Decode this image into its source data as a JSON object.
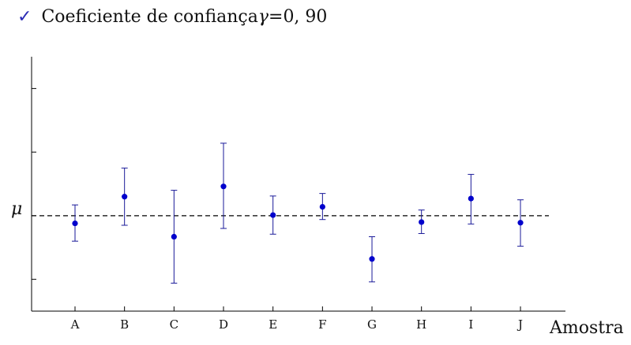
{
  "heading": {
    "check_symbol": "✓",
    "text": "Coeficiente de confiança ",
    "gamma_symbol": "γ",
    "equals": " = ",
    "value": "0, 90"
  },
  "chart_data": {
    "type": "scatter",
    "xlabel": "Amostra",
    "reference_line_label": "μ",
    "reference_value": 0,
    "ylim": [
      -1.5,
      2.5
    ],
    "grid": false,
    "categories": [
      "A",
      "B",
      "C",
      "D",
      "E",
      "F",
      "G",
      "H",
      "I",
      "J"
    ],
    "points": [
      {
        "x": "A",
        "y": -0.12,
        "lower": -0.4,
        "upper": 0.17
      },
      {
        "x": "B",
        "y": 0.3,
        "lower": -0.15,
        "upper": 0.75
      },
      {
        "x": "C",
        "y": -0.33,
        "lower": -1.06,
        "upper": 0.4
      },
      {
        "x": "D",
        "y": 0.46,
        "lower": -0.2,
        "upper": 1.14
      },
      {
        "x": "E",
        "y": 0.01,
        "lower": -0.29,
        "upper": 0.31
      },
      {
        "x": "F",
        "y": 0.14,
        "lower": -0.06,
        "upper": 0.35
      },
      {
        "x": "G",
        "y": -0.68,
        "lower": -1.04,
        "upper": -0.33
      },
      {
        "x": "H",
        "y": -0.1,
        "lower": -0.28,
        "upper": 0.09
      },
      {
        "x": "I",
        "y": 0.27,
        "lower": -0.13,
        "upper": 0.65
      },
      {
        "x": "J",
        "y": -0.11,
        "lower": -0.48,
        "upper": 0.25
      }
    ],
    "colors": {
      "points": "#0000cc",
      "error_bars": "#1a1a99",
      "axes": "#000000",
      "reference_line": "#000000"
    }
  }
}
